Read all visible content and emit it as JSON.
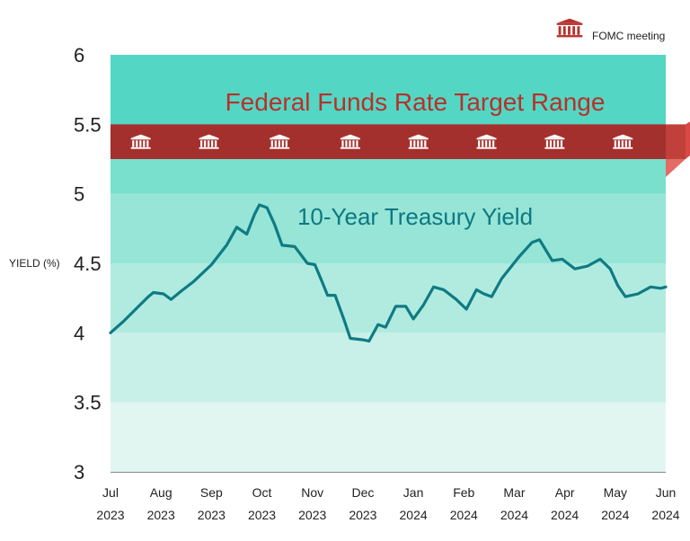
{
  "chart_data": {
    "type": "line",
    "title": "",
    "xlabel": "",
    "ylabel": "YIELD (%)",
    "ylim": [
      3,
      6
    ],
    "yticks": [
      "3",
      "3.5",
      "4",
      "4.5",
      "5",
      "5.5",
      "6"
    ],
    "x_range": [
      0,
      11
    ],
    "xticks": [
      {
        "x": 0,
        "month": "Jul",
        "year": "2023"
      },
      {
        "x": 1,
        "month": "Aug",
        "year": "2023"
      },
      {
        "x": 2,
        "month": "Sep",
        "year": "2023"
      },
      {
        "x": 3,
        "month": "Oct",
        "year": "2023"
      },
      {
        "x": 4,
        "month": "Nov",
        "year": "2023"
      },
      {
        "x": 5,
        "month": "Dec",
        "year": "2023"
      },
      {
        "x": 6,
        "month": "Jan",
        "year": "2024"
      },
      {
        "x": 7,
        "month": "Feb",
        "year": "2024"
      },
      {
        "x": 8,
        "month": "Mar",
        "year": "2024"
      },
      {
        "x": 9,
        "month": "Apr",
        "year": "2024"
      },
      {
        "x": 10,
        "month": "May",
        "year": "2024"
      },
      {
        "x": 11,
        "month": "Jun",
        "year": "2024"
      }
    ],
    "band": {
      "name": "Federal Funds Rate Target Range",
      "low": 5.25,
      "high": 5.5,
      "color": "#a3302d"
    },
    "series": [
      {
        "name": "10-Year Treasury Yield",
        "color": "#0f7b83",
        "points": [
          [
            0.0,
            4.0
          ],
          [
            0.25,
            4.08
          ],
          [
            0.5,
            4.17
          ],
          [
            0.75,
            4.26
          ],
          [
            0.85,
            4.29
          ],
          [
            1.05,
            4.28
          ],
          [
            1.2,
            4.24
          ],
          [
            1.4,
            4.3
          ],
          [
            1.65,
            4.37
          ],
          [
            2.0,
            4.49
          ],
          [
            2.3,
            4.63
          ],
          [
            2.5,
            4.76
          ],
          [
            2.7,
            4.71
          ],
          [
            2.85,
            4.85
          ],
          [
            2.95,
            4.92
          ],
          [
            3.1,
            4.9
          ],
          [
            3.25,
            4.78
          ],
          [
            3.4,
            4.63
          ],
          [
            3.65,
            4.62
          ],
          [
            3.9,
            4.5
          ],
          [
            4.05,
            4.49
          ],
          [
            4.2,
            4.36
          ],
          [
            4.3,
            4.27
          ],
          [
            4.45,
            4.27
          ],
          [
            4.62,
            4.1
          ],
          [
            4.75,
            3.96
          ],
          [
            5.0,
            3.95
          ],
          [
            5.12,
            3.94
          ],
          [
            5.3,
            4.06
          ],
          [
            5.45,
            4.04
          ],
          [
            5.65,
            4.19
          ],
          [
            5.85,
            4.19
          ],
          [
            6.0,
            4.1
          ],
          [
            6.2,
            4.2
          ],
          [
            6.4,
            4.33
          ],
          [
            6.6,
            4.31
          ],
          [
            6.85,
            4.24
          ],
          [
            7.05,
            4.17
          ],
          [
            7.25,
            4.31
          ],
          [
            7.4,
            4.28
          ],
          [
            7.55,
            4.26
          ],
          [
            7.75,
            4.39
          ],
          [
            8.1,
            4.55
          ],
          [
            8.35,
            4.65
          ],
          [
            8.5,
            4.67
          ],
          [
            8.75,
            4.52
          ],
          [
            8.95,
            4.53
          ],
          [
            9.2,
            4.46
          ],
          [
            9.45,
            4.48
          ],
          [
            9.7,
            4.53
          ],
          [
            9.9,
            4.46
          ],
          [
            10.05,
            4.34
          ],
          [
            10.2,
            4.26
          ],
          [
            10.45,
            4.28
          ],
          [
            10.7,
            4.33
          ],
          [
            10.9,
            4.32
          ],
          [
            11.0,
            4.33
          ]
        ]
      }
    ],
    "fomc_meetings_x": [
      0.6,
      1.95,
      3.35,
      4.75,
      6.1,
      7.45,
      8.8,
      10.15
    ],
    "legend": {
      "label": "FOMC meeting",
      "position": "top-right"
    },
    "shading": [
      "#e2f6f1",
      "#c9f0e8",
      "#b1ebe0",
      "#96e5d7",
      "#78e0cc",
      "#53d6c3"
    ]
  }
}
